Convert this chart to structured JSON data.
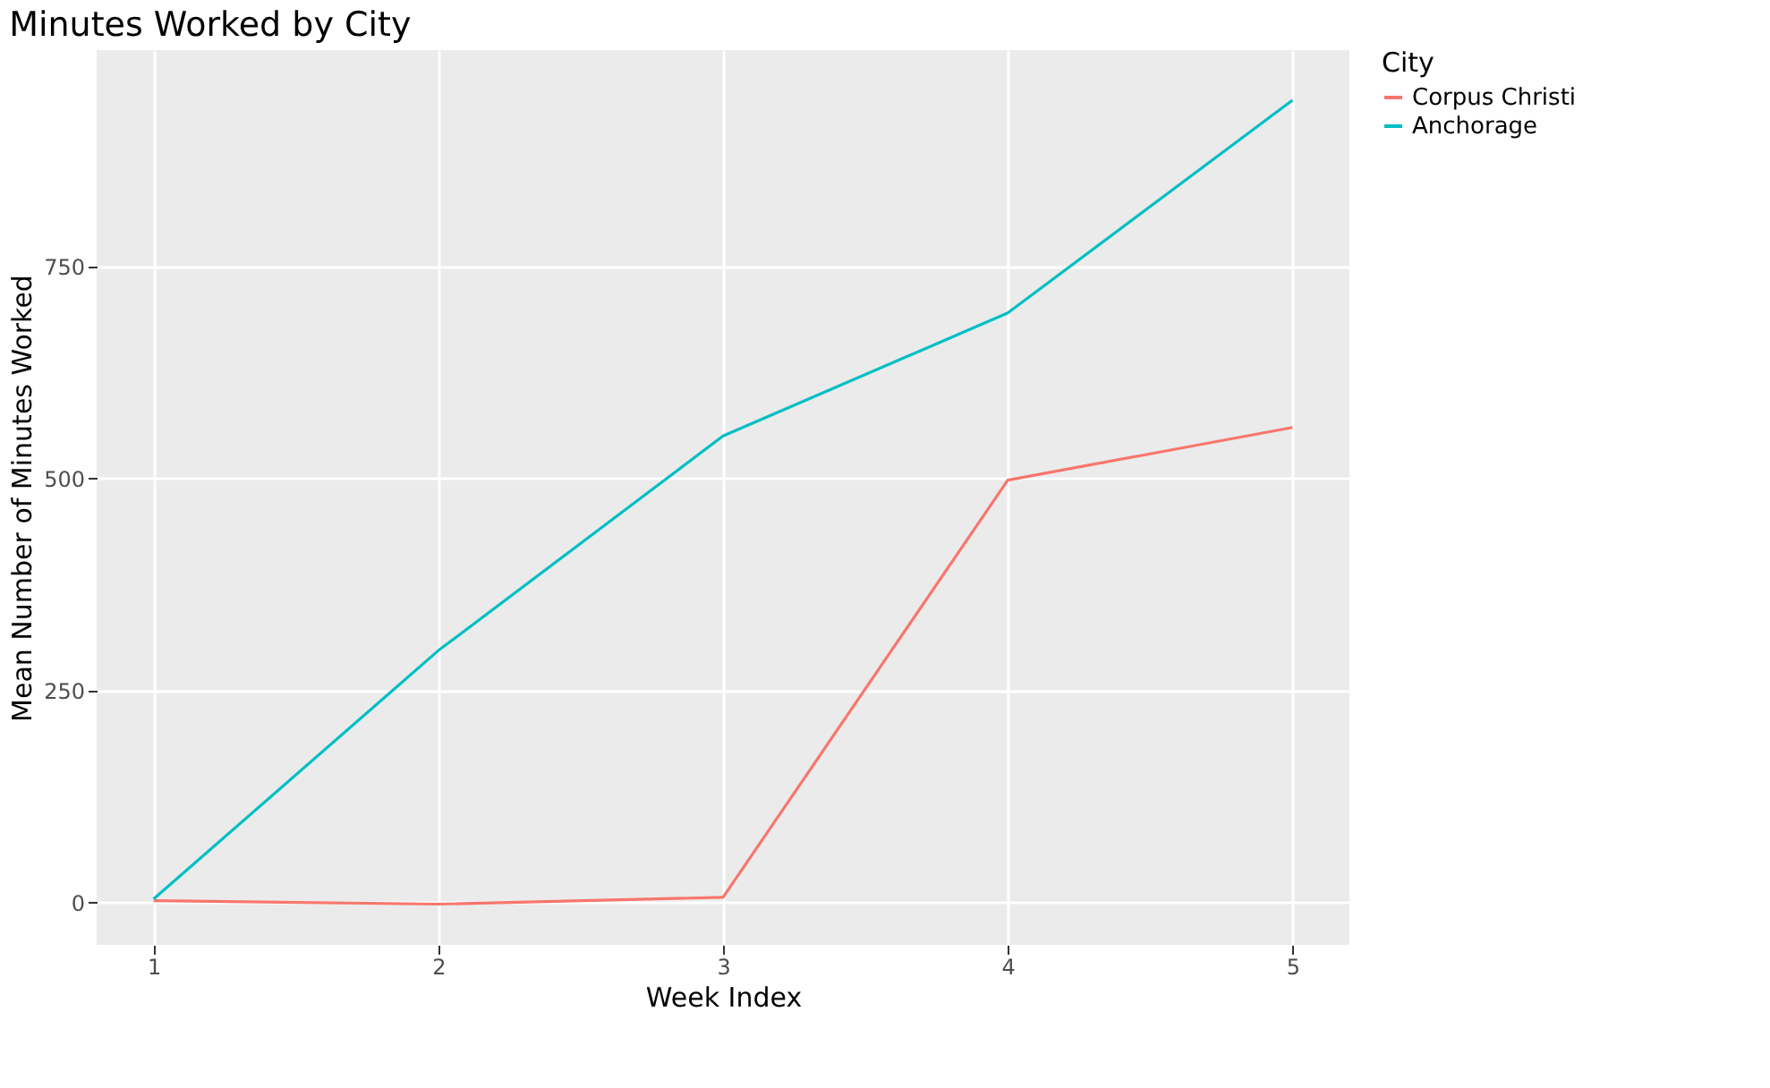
{
  "chart_data": {
    "type": "line",
    "title": "Minutes Worked by City",
    "xlabel": "Week Index",
    "ylabel": "Mean Number of Minutes Worked",
    "legend_title": "City",
    "x": [
      1,
      2,
      3,
      4,
      5
    ],
    "series": [
      {
        "name": "Corpus Christi",
        "color": "#f8766d",
        "values": [
          2,
          -2,
          6,
          498,
          560
        ]
      },
      {
        "name": "Anchorage",
        "color": "#00bfc4",
        "values": [
          4,
          297,
          550,
          695,
          946
        ]
      }
    ],
    "xlim": [
      0.8,
      5.2
    ],
    "ylim": [
      -50,
      1005
    ],
    "xticks": [
      1,
      2,
      3,
      4,
      5
    ],
    "yticks": [
      0,
      250,
      500,
      750
    ],
    "grid": true,
    "legend": "right",
    "marker": "none",
    "line_style": "solid"
  }
}
